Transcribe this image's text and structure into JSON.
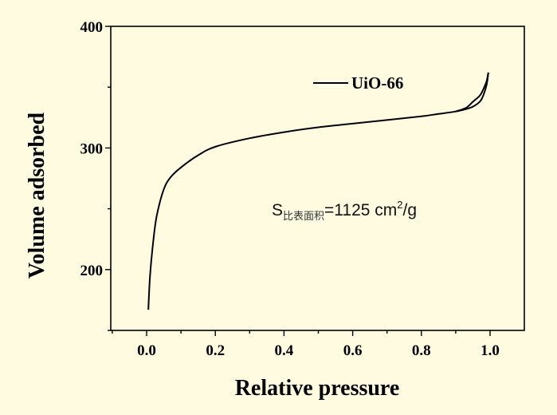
{
  "chart_data": {
    "type": "line",
    "title": "",
    "xlabel": "Relative pressure",
    "ylabel": "Volume adsorbed",
    "xlim": [
      -0.11,
      1.1
    ],
    "ylim": [
      150,
      400
    ],
    "x_ticks": [
      "0.0",
      "0.2",
      "0.4",
      "0.6",
      "0.8",
      "1.0"
    ],
    "x_tick_values": [
      0,
      0.2,
      0.4,
      0.6,
      0.8,
      1.0
    ],
    "y_ticks": [
      "200",
      "300",
      "400"
    ],
    "y_tick_values": [
      200,
      300,
      400
    ],
    "grid": false,
    "legend_placement": "top-right",
    "background_color": "#fefbe1",
    "series": [
      {
        "name": "UiO-66",
        "color": "#000000",
        "branch": "adsorption",
        "x": [
          0.005,
          0.01,
          0.02,
          0.03,
          0.05,
          0.07,
          0.1,
          0.15,
          0.2,
          0.3,
          0.4,
          0.5,
          0.6,
          0.7,
          0.8,
          0.85,
          0.9,
          0.93,
          0.95,
          0.97,
          0.98,
          0.99,
          0.995
        ],
        "y": [
          167,
          195,
          225,
          245,
          266,
          276,
          284,
          294,
          301,
          308,
          313,
          317,
          320,
          323,
          326,
          328,
          330,
          332,
          334,
          338,
          343,
          352,
          362
        ]
      },
      {
        "name": "",
        "color": "#000000",
        "branch": "desorption",
        "x": [
          0.995,
          0.99,
          0.98,
          0.97,
          0.95,
          0.93,
          0.9
        ],
        "y": [
          362,
          355,
          348,
          343,
          338,
          333,
          330
        ]
      }
    ],
    "annotation": {
      "main": "S",
      "subscript": "比表面积",
      "value": "=1125 cm",
      "superscript": "2",
      "unit": "/g"
    }
  }
}
